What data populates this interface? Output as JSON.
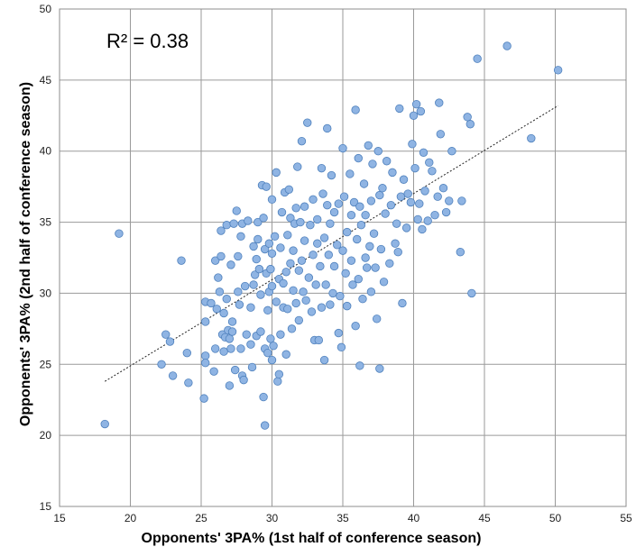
{
  "chart_data": {
    "type": "scatter",
    "xlabel": "Opponents' 3PA% (1st half of conference season)",
    "ylabel": "Opponents' 3PA% (2nd half of conference season)",
    "xlim": [
      15,
      55
    ],
    "ylim": [
      15,
      50
    ],
    "x_ticks": [
      "15",
      "20",
      "25",
      "30",
      "35",
      "40",
      "45",
      "50",
      "55"
    ],
    "y_ticks": [
      "15",
      "20",
      "25",
      "30",
      "35",
      "40",
      "45",
      "50"
    ],
    "grid": true,
    "annotation": "R² = 0.38",
    "marker_color": "#8fb4e3",
    "marker_edge": "#4f81bd",
    "trendline": {
      "style": "dashed",
      "x": [
        18.2,
        50.2
      ],
      "y": [
        23.8,
        43.2
      ]
    },
    "series": [
      {
        "points": [
          [
            18.2,
            20.8
          ],
          [
            19.2,
            34.2
          ],
          [
            22.2,
            25.0
          ],
          [
            22.5,
            27.1
          ],
          [
            22.8,
            26.6
          ],
          [
            23.0,
            24.2
          ],
          [
            23.6,
            32.3
          ],
          [
            24.0,
            25.8
          ],
          [
            24.1,
            23.7
          ],
          [
            25.2,
            22.6
          ],
          [
            25.3,
            25.6
          ],
          [
            25.3,
            25.1
          ],
          [
            25.3,
            28.0
          ],
          [
            25.3,
            29.4
          ],
          [
            25.7,
            29.3
          ],
          [
            25.9,
            24.5
          ],
          [
            26.0,
            26.1
          ],
          [
            26.0,
            32.3
          ],
          [
            26.1,
            28.9
          ],
          [
            26.2,
            31.1
          ],
          [
            26.3,
            30.1
          ],
          [
            26.4,
            32.6
          ],
          [
            26.4,
            34.4
          ],
          [
            26.5,
            27.1
          ],
          [
            26.6,
            25.9
          ],
          [
            26.6,
            28.6
          ],
          [
            26.7,
            26.9
          ],
          [
            26.8,
            29.6
          ],
          [
            26.8,
            34.8
          ],
          [
            26.9,
            27.4
          ],
          [
            27.0,
            26.8
          ],
          [
            27.0,
            23.5
          ],
          [
            27.1,
            26.1
          ],
          [
            27.1,
            32.0
          ],
          [
            27.2,
            27.3
          ],
          [
            27.2,
            28.0
          ],
          [
            27.3,
            34.9
          ],
          [
            27.4,
            24.6
          ],
          [
            27.5,
            35.8
          ],
          [
            27.6,
            30.1
          ],
          [
            27.6,
            32.6
          ],
          [
            27.7,
            29.2
          ],
          [
            27.8,
            26.1
          ],
          [
            27.8,
            34.0
          ],
          [
            27.9,
            24.2
          ],
          [
            27.9,
            34.9
          ],
          [
            28.0,
            23.9
          ],
          [
            28.1,
            30.5
          ],
          [
            28.2,
            27.1
          ],
          [
            28.3,
            35.1
          ],
          [
            28.5,
            26.4
          ],
          [
            28.5,
            29.0
          ],
          [
            28.6,
            24.8
          ],
          [
            28.7,
            33.3
          ],
          [
            28.7,
            30.6
          ],
          [
            28.8,
            31.3
          ],
          [
            28.9,
            27.0
          ],
          [
            28.9,
            32.4
          ],
          [
            29.0,
            35.0
          ],
          [
            29.0,
            33.8
          ],
          [
            29.1,
            31.7
          ],
          [
            29.2,
            29.9
          ],
          [
            29.2,
            27.3
          ],
          [
            29.3,
            37.6
          ],
          [
            29.4,
            35.3
          ],
          [
            29.4,
            22.7
          ],
          [
            29.5,
            20.7
          ],
          [
            29.5,
            33.1
          ],
          [
            29.5,
            26.1
          ],
          [
            29.6,
            31.4
          ],
          [
            29.6,
            37.5
          ],
          [
            29.7,
            25.8
          ],
          [
            29.7,
            28.8
          ],
          [
            29.8,
            30.1
          ],
          [
            29.8,
            33.5
          ],
          [
            29.9,
            26.8
          ],
          [
            29.9,
            31.7
          ],
          [
            30.0,
            25.3
          ],
          [
            30.0,
            36.6
          ],
          [
            30.0,
            32.8
          ],
          [
            30.0,
            30.5
          ],
          [
            30.1,
            26.3
          ],
          [
            30.2,
            34.0
          ],
          [
            30.3,
            29.4
          ],
          [
            30.3,
            38.5
          ],
          [
            30.4,
            23.8
          ],
          [
            30.5,
            24.3
          ],
          [
            30.5,
            31.0
          ],
          [
            30.6,
            27.1
          ],
          [
            30.6,
            33.2
          ],
          [
            30.7,
            35.7
          ],
          [
            30.8,
            29.0
          ],
          [
            30.8,
            30.7
          ],
          [
            30.9,
            37.1
          ],
          [
            31.0,
            31.5
          ],
          [
            31.0,
            25.7
          ],
          [
            31.1,
            34.1
          ],
          [
            31.1,
            28.9
          ],
          [
            31.2,
            37.3
          ],
          [
            31.3,
            32.1
          ],
          [
            31.3,
            35.3
          ],
          [
            31.4,
            27.5
          ],
          [
            31.5,
            30.2
          ],
          [
            31.5,
            33.0
          ],
          [
            31.6,
            34.9
          ],
          [
            31.7,
            29.3
          ],
          [
            31.7,
            36.0
          ],
          [
            31.8,
            38.9
          ],
          [
            31.9,
            31.6
          ],
          [
            31.9,
            28.1
          ],
          [
            32.0,
            35.0
          ],
          [
            32.1,
            32.3
          ],
          [
            32.1,
            40.7
          ],
          [
            32.2,
            30.1
          ],
          [
            32.3,
            33.7
          ],
          [
            32.3,
            36.1
          ],
          [
            32.4,
            29.5
          ],
          [
            32.5,
            42.0
          ],
          [
            32.6,
            31.1
          ],
          [
            32.7,
            34.8
          ],
          [
            32.8,
            28.7
          ],
          [
            32.9,
            36.6
          ],
          [
            32.9,
            32.7
          ],
          [
            33.0,
            26.7
          ],
          [
            33.1,
            30.6
          ],
          [
            33.2,
            35.2
          ],
          [
            33.2,
            33.5
          ],
          [
            33.3,
            26.7
          ],
          [
            33.4,
            31.9
          ],
          [
            33.5,
            38.8
          ],
          [
            33.5,
            29.0
          ],
          [
            33.6,
            37.0
          ],
          [
            33.7,
            33.9
          ],
          [
            33.7,
            25.3
          ],
          [
            33.8,
            30.6
          ],
          [
            33.9,
            36.2
          ],
          [
            33.9,
            41.6
          ],
          [
            34.0,
            32.7
          ],
          [
            34.1,
            34.9
          ],
          [
            34.1,
            29.2
          ],
          [
            34.2,
            38.3
          ],
          [
            34.3,
            30.0
          ],
          [
            34.4,
            35.7
          ],
          [
            34.4,
            31.9
          ],
          [
            34.6,
            33.4
          ],
          [
            34.7,
            27.2
          ],
          [
            34.7,
            36.3
          ],
          [
            34.8,
            29.8
          ],
          [
            34.9,
            26.2
          ],
          [
            35.0,
            40.2
          ],
          [
            35.0,
            33.0
          ],
          [
            35.1,
            36.8
          ],
          [
            35.2,
            31.4
          ],
          [
            35.3,
            34.3
          ],
          [
            35.3,
            29.1
          ],
          [
            35.5,
            38.4
          ],
          [
            35.6,
            32.3
          ],
          [
            35.6,
            35.5
          ],
          [
            35.7,
            30.6
          ],
          [
            35.8,
            36.4
          ],
          [
            35.9,
            42.9
          ],
          [
            35.9,
            27.7
          ],
          [
            36.0,
            33.8
          ],
          [
            36.1,
            39.5
          ],
          [
            36.1,
            31.0
          ],
          [
            36.2,
            36.1
          ],
          [
            36.2,
            24.9
          ],
          [
            36.3,
            34.8
          ],
          [
            36.4,
            29.6
          ],
          [
            36.5,
            37.7
          ],
          [
            36.6,
            32.5
          ],
          [
            36.6,
            35.5
          ],
          [
            36.7,
            31.8
          ],
          [
            36.8,
            40.4
          ],
          [
            36.9,
            33.3
          ],
          [
            37.0,
            30.1
          ],
          [
            37.0,
            36.5
          ],
          [
            37.1,
            39.1
          ],
          [
            37.2,
            34.2
          ],
          [
            37.3,
            31.8
          ],
          [
            37.4,
            28.2
          ],
          [
            37.5,
            40.0
          ],
          [
            37.6,
            36.9
          ],
          [
            37.6,
            24.7
          ],
          [
            37.7,
            33.1
          ],
          [
            37.8,
            37.4
          ],
          [
            37.9,
            30.8
          ],
          [
            38.0,
            35.6
          ],
          [
            38.1,
            39.3
          ],
          [
            38.3,
            32.1
          ],
          [
            38.4,
            36.2
          ],
          [
            38.5,
            38.5
          ],
          [
            38.7,
            33.5
          ],
          [
            38.8,
            34.9
          ],
          [
            38.9,
            32.9
          ],
          [
            39.0,
            43.0
          ],
          [
            39.1,
            36.8
          ],
          [
            39.2,
            29.3
          ],
          [
            39.3,
            38.0
          ],
          [
            39.5,
            34.6
          ],
          [
            39.6,
            37.0
          ],
          [
            39.8,
            36.4
          ],
          [
            39.9,
            40.5
          ],
          [
            40.0,
            42.5
          ],
          [
            40.1,
            38.8
          ],
          [
            40.2,
            43.3
          ],
          [
            40.3,
            35.2
          ],
          [
            40.4,
            36.3
          ],
          [
            40.5,
            42.8
          ],
          [
            40.6,
            34.5
          ],
          [
            40.7,
            39.9
          ],
          [
            40.8,
            37.2
          ],
          [
            41.0,
            35.1
          ],
          [
            41.1,
            39.2
          ],
          [
            41.3,
            38.6
          ],
          [
            41.5,
            35.5
          ],
          [
            41.7,
            36.8
          ],
          [
            41.8,
            43.4
          ],
          [
            41.9,
            41.2
          ],
          [
            42.1,
            37.4
          ],
          [
            42.3,
            35.7
          ],
          [
            42.5,
            36.5
          ],
          [
            42.7,
            40.0
          ],
          [
            43.3,
            32.9
          ],
          [
            43.4,
            36.5
          ],
          [
            43.8,
            42.4
          ],
          [
            44.0,
            41.9
          ],
          [
            44.1,
            30.0
          ],
          [
            44.5,
            46.5
          ],
          [
            46.6,
            47.4
          ],
          [
            48.3,
            40.9
          ],
          [
            50.2,
            45.7
          ]
        ]
      }
    ]
  }
}
